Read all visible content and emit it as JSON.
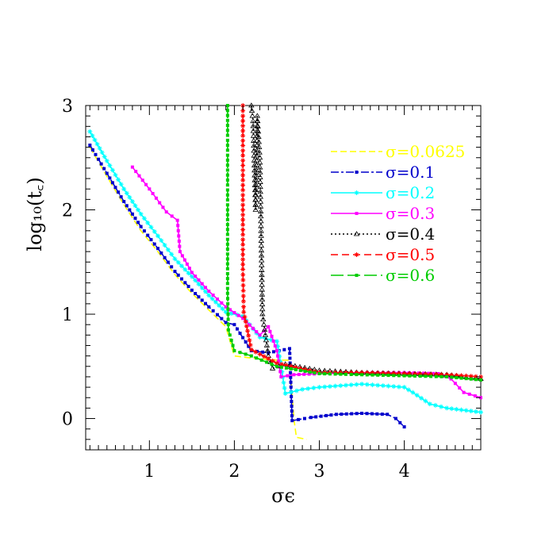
{
  "chart_data": {
    "type": "line",
    "title": "",
    "xlabel": "σϵ",
    "ylabel": "log₁₀(t꜀)",
    "xlim": [
      0.25,
      4.9
    ],
    "ylim": [
      -0.3,
      3.0
    ],
    "xticks": [
      1,
      2,
      3,
      4
    ],
    "yticks": [
      0,
      1,
      2,
      3
    ],
    "grid": false,
    "legend_position": "top-right",
    "series": [
      {
        "name": "σ=0.0625",
        "color": "#ffff00",
        "dash": "8,4",
        "marker": "none",
        "points": [
          [
            0.3,
            2.6
          ],
          [
            0.5,
            2.32
          ],
          [
            0.7,
            2.05
          ],
          [
            0.9,
            1.8
          ],
          [
            1.1,
            1.6
          ],
          [
            1.3,
            1.38
          ],
          [
            1.5,
            1.2
          ],
          [
            1.7,
            1.04
          ],
          [
            1.9,
            0.88
          ],
          [
            2.0,
            0.6
          ],
          [
            2.2,
            0.58
          ],
          [
            2.5,
            0.56
          ],
          [
            2.65,
            0.56
          ],
          [
            2.7,
            0.0
          ],
          [
            2.73,
            -0.18
          ],
          [
            2.85,
            -0.2
          ]
        ]
      },
      {
        "name": "σ=0.1",
        "color": "#0000cc",
        "dash": "10,3,3,3",
        "marker": "square",
        "points": [
          [
            0.3,
            2.62
          ],
          [
            0.5,
            2.35
          ],
          [
            0.7,
            2.08
          ],
          [
            0.9,
            1.84
          ],
          [
            1.1,
            1.63
          ],
          [
            1.3,
            1.41
          ],
          [
            1.5,
            1.23
          ],
          [
            1.7,
            1.07
          ],
          [
            1.9,
            0.92
          ],
          [
            2.0,
            0.9
          ],
          [
            2.2,
            0.65
          ],
          [
            2.4,
            0.63
          ],
          [
            2.65,
            0.67
          ],
          [
            2.68,
            -0.02
          ],
          [
            2.9,
            0.01
          ],
          [
            3.2,
            0.04
          ],
          [
            3.5,
            0.05
          ],
          [
            3.8,
            0.04
          ],
          [
            3.9,
            0.0
          ],
          [
            4.0,
            -0.08
          ]
        ]
      },
      {
        "name": "σ=0.2",
        "color": "#00ffff",
        "dash": "",
        "marker": "star",
        "points": [
          [
            0.3,
            2.75
          ],
          [
            0.5,
            2.47
          ],
          [
            0.7,
            2.2
          ],
          [
            0.9,
            1.96
          ],
          [
            1.1,
            1.75
          ],
          [
            1.3,
            1.53
          ],
          [
            1.5,
            1.36
          ],
          [
            1.7,
            1.18
          ],
          [
            1.9,
            1.02
          ],
          [
            2.1,
            0.98
          ],
          [
            2.3,
            0.78
          ],
          [
            2.5,
            0.74
          ],
          [
            2.55,
            0.5
          ],
          [
            2.6,
            0.24
          ],
          [
            2.8,
            0.28
          ],
          [
            3.0,
            0.3
          ],
          [
            3.5,
            0.33
          ],
          [
            4.0,
            0.3
          ],
          [
            4.1,
            0.25
          ],
          [
            4.3,
            0.14
          ],
          [
            4.5,
            0.1
          ],
          [
            4.9,
            0.06
          ]
        ]
      },
      {
        "name": "σ=0.3",
        "color": "#ff00ff",
        "dash": "",
        "marker": "square",
        "points": [
          [
            0.8,
            2.41
          ],
          [
            1.0,
            2.2
          ],
          [
            1.2,
            1.98
          ],
          [
            1.33,
            1.9
          ],
          [
            1.36,
            1.6
          ],
          [
            1.5,
            1.4
          ],
          [
            1.7,
            1.22
          ],
          [
            1.9,
            1.07
          ],
          [
            2.1,
            0.96
          ],
          [
            2.3,
            0.8
          ],
          [
            2.4,
            0.88
          ],
          [
            2.5,
            0.65
          ],
          [
            2.55,
            0.4
          ],
          [
            2.7,
            0.42
          ],
          [
            3.0,
            0.43
          ],
          [
            3.5,
            0.44
          ],
          [
            4.0,
            0.44
          ],
          [
            4.4,
            0.43
          ],
          [
            4.55,
            0.38
          ],
          [
            4.7,
            0.25
          ],
          [
            4.9,
            0.2
          ]
        ]
      },
      {
        "name": "σ=0.4",
        "color": "#000000",
        "dash": "2,3",
        "marker": "triangle",
        "points": [
          [
            2.2,
            3.0
          ],
          [
            2.22,
            2.85
          ],
          [
            2.25,
            2.0
          ],
          [
            2.27,
            2.9
          ],
          [
            2.3,
            2.5
          ],
          [
            2.33,
            1.0
          ],
          [
            2.4,
            0.6
          ],
          [
            2.45,
            0.48
          ],
          [
            2.6,
            0.52
          ],
          [
            3.0,
            0.46
          ],
          [
            3.5,
            0.44
          ],
          [
            4.0,
            0.43
          ],
          [
            4.5,
            0.42
          ],
          [
            4.9,
            0.38
          ]
        ]
      },
      {
        "name": "σ=0.5",
        "color": "#ff0000",
        "dash": "9,5",
        "marker": "star",
        "points": [
          [
            2.1,
            3.0
          ],
          [
            2.1,
            2.9
          ],
          [
            2.1,
            2.0
          ],
          [
            2.1,
            1.43
          ],
          [
            2.11,
            1.02
          ],
          [
            2.2,
            0.66
          ],
          [
            2.5,
            0.53
          ],
          [
            3.0,
            0.44
          ],
          [
            3.5,
            0.44
          ],
          [
            4.0,
            0.43
          ],
          [
            4.5,
            0.42
          ],
          [
            4.9,
            0.4
          ]
        ]
      },
      {
        "name": "σ=0.6",
        "color": "#00cc00",
        "dash": "16,5",
        "marker": "square",
        "points": [
          [
            1.92,
            3.0
          ],
          [
            1.92,
            2.0
          ],
          [
            1.92,
            1.2
          ],
          [
            1.93,
            0.85
          ],
          [
            2.0,
            0.65
          ],
          [
            2.2,
            0.6
          ],
          [
            2.5,
            0.5
          ],
          [
            3.0,
            0.43
          ],
          [
            3.5,
            0.42
          ],
          [
            4.0,
            0.41
          ],
          [
            4.5,
            0.4
          ],
          [
            4.9,
            0.37
          ]
        ]
      }
    ]
  }
}
